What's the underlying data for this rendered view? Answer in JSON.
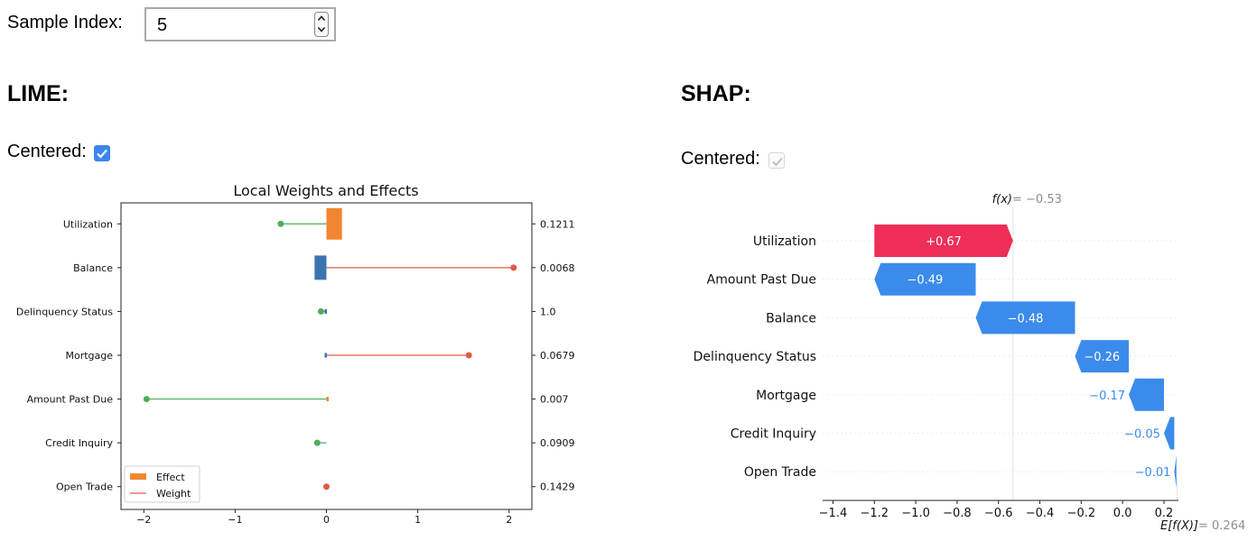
{
  "sample": {
    "label": "Sample Index:",
    "value": "5"
  },
  "lime": {
    "heading": "LIME:",
    "centered_label": "Centered:",
    "centered_checked": true
  },
  "shap": {
    "heading": "SHAP:",
    "centered_label": "Centered:",
    "centered_checked": true,
    "centered_disabled": true
  },
  "colors": {
    "effect_orange": "#f28530",
    "effect_blue": "#3a75b0",
    "weight_red": "#e15a49",
    "weight_green": "#4cae58",
    "shap_pos": "#ee2e57",
    "shap_neg": "#3b8bec",
    "checkbox_blue": "#3a86f0"
  },
  "chart_data": [
    {
      "type": "bar",
      "title": "Local Weights and Effects",
      "categories": [
        "Utilization",
        "Balance",
        "Delinquency Status",
        "Mortgage",
        "Amount Past Due",
        "Credit Inquiry",
        "Open Trade"
      ],
      "right_labels": [
        "0.1211",
        "0.0068",
        "1.0",
        "0.0679",
        "0.007",
        "0.0909",
        "0.1429"
      ],
      "xlim": [
        -2.25,
        2.25
      ],
      "xticks": [
        -2,
        -1,
        0,
        1,
        2
      ],
      "xtick_labels": [
        "−2",
        "−1",
        "0",
        "1",
        "2"
      ],
      "series": [
        {
          "name": "Effect",
          "values": [
            0.17,
            -0.13,
            -0.02,
            -0.02,
            0.02,
            0.0,
            0.0
          ]
        },
        {
          "name": "Weight",
          "values": [
            -0.5,
            2.05,
            -0.06,
            1.56,
            -1.97,
            -0.1,
            0.0
          ]
        }
      ],
      "legend_position": "lower-left",
      "grid": false
    },
    {
      "type": "bar",
      "subtype": "waterfall",
      "categories": [
        "Utilization",
        "Amount Past Due",
        "Balance",
        "Delinquency Status",
        "Mortgage",
        "Credit Inquiry",
        "Open Trade"
      ],
      "values": [
        0.67,
        -0.49,
        -0.48,
        -0.26,
        -0.17,
        -0.05,
        -0.01
      ],
      "value_labels": [
        "+0.67",
        "−0.49",
        "−0.48",
        "−0.26",
        "−0.17",
        "−0.05",
        "−0.01"
      ],
      "base_value": 0.264,
      "output_value": -0.53,
      "top_label_name": "f(x)",
      "top_label_value": " = −0.53",
      "bottom_label_name": "E[f(X)]",
      "bottom_label_value": " = 0.264",
      "xlim": [
        -1.45,
        0.27
      ],
      "xticks": [
        -1.4,
        -1.2,
        -1.0,
        -0.8,
        -0.6,
        -0.4,
        -0.2,
        0.0,
        0.2
      ],
      "xtick_labels": [
        "−1.4",
        "−1.2",
        "−1.0",
        "−0.8",
        "−0.6",
        "−0.4",
        "−0.2",
        "0.0",
        "0.2"
      ]
    }
  ]
}
